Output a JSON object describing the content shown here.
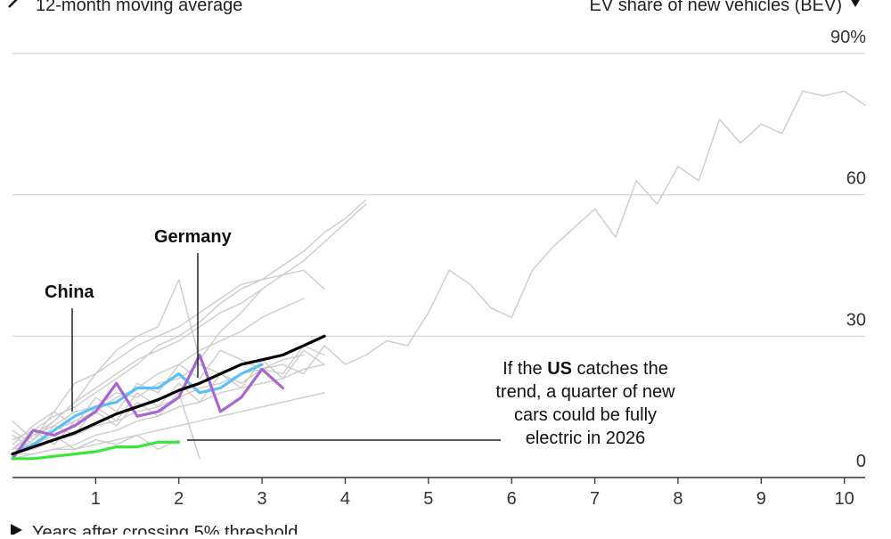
{
  "header": {
    "legend_text": "12-month moving average",
    "y_axis_title": "EV share of new vehicles (BEV)",
    "x_axis_title": "Years after crossing 5% threshold"
  },
  "annotations": {
    "china_label": "China",
    "germany_label": "Germany",
    "us_note_lines": [
      [
        "If the ",
        "US",
        " catches the"
      ],
      [
        "trend, a quarter of new"
      ],
      [
        "cars could be fully"
      ],
      [
        "electric in 2026"
      ]
    ]
  },
  "chart_data": {
    "type": "line",
    "title": "",
    "xlabel": "Years after crossing 5% threshold",
    "ylabel": "EV share of new vehicles (BEV)",
    "xlim": [
      0,
      10.25
    ],
    "ylim": [
      0,
      90
    ],
    "x_ticks": [
      1,
      2,
      3,
      4,
      5,
      6,
      7,
      8,
      9,
      10
    ],
    "y_ticks": [
      0,
      30,
      60,
      90
    ],
    "y_tick_labels": [
      "0",
      "30",
      "60",
      "90%"
    ],
    "grid": "horizontal",
    "colors": {
      "other_countries": "#cccccc",
      "china": "#5bc0f8",
      "germany": "#a965d1",
      "us": "#39e639",
      "trend": "#000000",
      "grid": "#d0d0d0"
    },
    "series": [
      {
        "role": "other",
        "x": [
          0,
          0.25,
          0.5,
          0.75,
          1,
          1.25,
          1.5,
          1.75,
          2,
          2.25,
          2.5,
          2.75,
          3,
          3.25,
          3.5,
          3.75,
          4,
          4.25,
          4.5,
          4.75,
          5,
          5.25,
          5.5,
          5.75,
          6,
          6.25,
          6.5,
          6.75,
          7,
          7.25,
          7.5,
          7.75,
          8,
          8.25,
          8.5,
          8.75,
          9,
          9.25,
          9.5,
          9.75,
          10,
          10.25
        ],
        "values": [
          6,
          9,
          11,
          14,
          15,
          18,
          17,
          20,
          21,
          24,
          22,
          20,
          23,
          24,
          22,
          28,
          24,
          26,
          29,
          28,
          35,
          44,
          41,
          36,
          34,
          44,
          49,
          53,
          57,
          51,
          63,
          58,
          66,
          63,
          76,
          71,
          75,
          73,
          82,
          81,
          82,
          79
        ]
      },
      {
        "role": "other",
        "x": [
          0,
          0.25,
          0.5,
          0.75,
          1,
          1.25,
          1.5,
          1.75,
          2,
          2.25,
          2.5,
          2.75,
          3,
          3.25,
          3.5,
          3.75,
          4,
          4.25
        ],
        "values": [
          5,
          9,
          12,
          16,
          19,
          22,
          25,
          27,
          29,
          32,
          35,
          37,
          40,
          43,
          46,
          50,
          54,
          58
        ]
      },
      {
        "role": "other",
        "x": [
          0,
          0.25,
          0.5,
          0.75,
          1,
          1.25,
          1.5,
          1.75,
          2,
          2.25,
          2.5,
          2.75,
          3,
          3.25,
          3.5,
          3.75,
          4,
          4.25
        ],
        "values": [
          6,
          10,
          13,
          15,
          18,
          21,
          24,
          28,
          30,
          33,
          37,
          40,
          42,
          45,
          48,
          52,
          55,
          59
        ]
      },
      {
        "role": "other",
        "x": [
          0,
          0.25,
          0.5,
          0.75,
          1,
          1.25,
          1.5,
          1.75,
          2,
          2.25,
          2.5,
          2.75,
          3,
          3.25,
          3.5,
          3.75
        ],
        "values": [
          5,
          8,
          12,
          16,
          22,
          25,
          28,
          30,
          32,
          35,
          38,
          41,
          42,
          43,
          44,
          40
        ]
      },
      {
        "role": "other",
        "x": [
          0,
          0.25,
          0.5,
          0.75,
          1,
          1.25,
          1.5,
          1.75,
          2,
          2.25,
          2.5,
          2.75,
          3
        ],
        "values": [
          7,
          11,
          14,
          20,
          22,
          27,
          30,
          32,
          42,
          25,
          31,
          35,
          40
        ]
      },
      {
        "role": "other",
        "x": [
          0,
          0.25,
          0.5,
          0.75,
          1,
          1.25,
          1.5,
          1.75,
          2,
          2.25,
          2.5,
          2.75,
          3,
          3.25,
          3.5,
          3.75
        ],
        "values": [
          12,
          8,
          14,
          11,
          17,
          14,
          20,
          18,
          24,
          21,
          27,
          25,
          23,
          22,
          28,
          26
        ]
      },
      {
        "role": "other",
        "x": [
          0,
          0.25,
          0.5,
          0.75,
          1,
          1.25,
          1.5,
          1.75,
          2,
          2.25,
          2.5,
          2.75,
          3,
          3.25,
          3.5,
          3.75
        ],
        "values": [
          9,
          6,
          11,
          9,
          15,
          12,
          18,
          15,
          20,
          16,
          22,
          19,
          25,
          21,
          27,
          24
        ]
      },
      {
        "role": "other",
        "x": [
          0,
          0.25,
          0.5,
          0.75,
          1,
          1.25,
          1.5,
          1.75,
          2,
          2.25,
          2.5,
          2.75,
          3,
          3.25,
          3.5,
          3.75
        ],
        "values": [
          4,
          5,
          6,
          7,
          9,
          10,
          12,
          13,
          15,
          16,
          18,
          19,
          20,
          21,
          23,
          24
        ]
      },
      {
        "role": "other",
        "x": [
          0,
          0.25,
          0.5,
          0.75,
          1,
          1.25,
          1.5,
          1.75,
          2,
          2.25,
          2.5,
          2.75,
          3,
          3.25,
          3.5
        ],
        "values": [
          5,
          6,
          8,
          9,
          11,
          12,
          14,
          15,
          17,
          19,
          20,
          22,
          23,
          25,
          26
        ]
      },
      {
        "role": "other",
        "x": [
          0,
          0.25,
          0.5,
          0.75,
          1,
          1.25,
          1.5,
          1.75,
          2,
          2.25
        ],
        "values": [
          8,
          10,
          7,
          12,
          14,
          11,
          16,
          13,
          18,
          4
        ]
      },
      {
        "role": "other",
        "x": [
          0,
          0.25,
          0.5,
          0.75,
          1,
          1.25,
          1.5,
          1.75,
          2,
          2.25,
          2.5,
          2.75,
          3,
          3.25,
          3.5
        ],
        "values": [
          6,
          7,
          10,
          12,
          14,
          17,
          19,
          22,
          24,
          27,
          29,
          31,
          34,
          36,
          38
        ]
      },
      {
        "role": "other",
        "x": [
          0,
          0.25,
          0.5,
          0.75,
          1,
          1.25,
          1.5,
          1.75,
          2,
          2.25,
          2.5,
          2.75,
          3,
          3.25,
          3.5,
          3.75
        ],
        "values": [
          5,
          5,
          6,
          6,
          7,
          8,
          9,
          10,
          11,
          12,
          13,
          14,
          15,
          16,
          17,
          18
        ]
      },
      {
        "role": "other",
        "x": [
          0,
          0.25,
          0.5,
          0.75,
          1,
          1.25,
          1.5,
          1.75,
          2
        ],
        "values": [
          10,
          7,
          9,
          6,
          8,
          7,
          9,
          6,
          8
        ]
      },
      {
        "role": "china",
        "name": "China",
        "x": [
          0,
          0.25,
          0.5,
          0.75,
          1,
          1.25,
          1.5,
          1.75,
          2,
          2.25,
          2.5,
          2.75,
          3
        ],
        "values": [
          5,
          7,
          10,
          13,
          15,
          16,
          19,
          19,
          22,
          18,
          19,
          22,
          24
        ]
      },
      {
        "role": "germany",
        "name": "Germany",
        "x": [
          0,
          0.25,
          0.5,
          0.75,
          1,
          1.25,
          1.5,
          1.75,
          2,
          2.25,
          2.5,
          2.75,
          3,
          3.25
        ],
        "values": [
          4,
          10,
          9,
          11,
          14,
          20,
          13,
          14,
          17,
          26,
          14,
          17,
          23,
          19
        ]
      },
      {
        "role": "us",
        "name": "US",
        "x": [
          0,
          0.25,
          0.5,
          0.75,
          1,
          1.25,
          1.5,
          1.75,
          2
        ],
        "values": [
          4,
          4,
          4.5,
          5,
          5.5,
          6.5,
          6.5,
          7.5,
          7.5
        ]
      },
      {
        "role": "trend",
        "x": [
          0,
          0.25,
          0.5,
          0.75,
          1,
          1.25,
          1.5,
          1.75,
          2,
          2.25,
          2.5,
          2.75,
          3,
          3.25,
          3.5,
          3.75
        ],
        "values": [
          5,
          6.5,
          8,
          9.5,
          11.5,
          13.5,
          15,
          16.5,
          18.5,
          20,
          22,
          24,
          25,
          26,
          28,
          30
        ]
      }
    ]
  }
}
